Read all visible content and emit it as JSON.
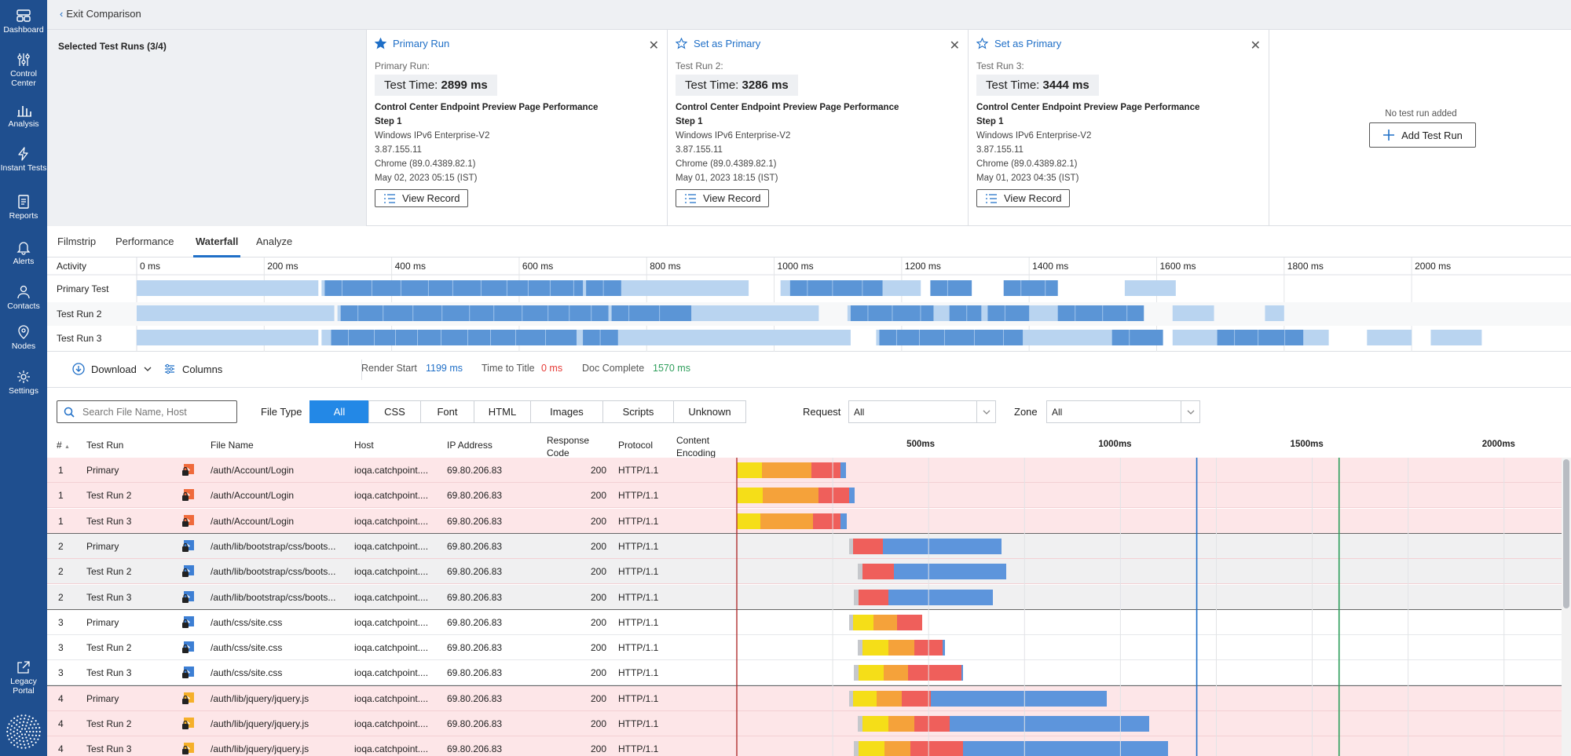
{
  "sidebar": {
    "items": [
      {
        "label": "Dashboard",
        "icon": "dashboard-icon"
      },
      {
        "label": "Control Center",
        "icon": "sliders-icon"
      },
      {
        "label": "Analysis",
        "icon": "bar-chart-icon"
      },
      {
        "label": "Instant Tests",
        "icon": "lightning-icon"
      },
      {
        "label": "Reports",
        "icon": "report-icon"
      },
      {
        "label": "Alerts",
        "icon": "bell-icon"
      },
      {
        "label": "Contacts",
        "icon": "person-icon"
      },
      {
        "label": "Nodes",
        "icon": "location-pin-icon"
      },
      {
        "label": "Settings",
        "icon": "gear-icon"
      }
    ],
    "legacy": "Legacy Portal"
  },
  "topbar": {
    "exit_label": "Exit Comparison"
  },
  "compare": {
    "selected_label": "Selected Test Runs (3/4)",
    "cards": [
      {
        "action": "Primary Run",
        "star": "filled",
        "sub": "Primary Run:",
        "time_label": "Test Time:",
        "time_value": "2899 ms",
        "title": "Control Center Endpoint Preview Page Performance",
        "step": "Step 1",
        "node": "Windows IPv6 Enterprise-V2",
        "ip": "3.87.155.11",
        "browser": "Chrome (89.0.4389.82.1)",
        "date": "May 02, 2023 05:15 (IST)",
        "view": "View Record"
      },
      {
        "action": "Set as Primary",
        "star": "outline",
        "sub": "Test Run 2:",
        "time_label": "Test Time:",
        "time_value": "3286 ms",
        "title": "Control Center Endpoint Preview Page Performance",
        "step": "Step 1",
        "node": "Windows IPv6 Enterprise-V2",
        "ip": "3.87.155.11",
        "browser": "Chrome (89.0.4389.82.1)",
        "date": "May 01, 2023 18:15 (IST)",
        "view": "View Record"
      },
      {
        "action": "Set as Primary",
        "star": "outline",
        "sub": "Test Run 3:",
        "time_label": "Test Time:",
        "time_value": "3444 ms",
        "title": "Control Center Endpoint Preview Page Performance",
        "step": "Step 1",
        "node": "Windows IPv6 Enterprise-V2",
        "ip": "3.87.155.11",
        "browser": "Chrome (89.0.4389.82.1)",
        "date": "May 01, 2023 04:35 (IST)",
        "view": "View Record"
      }
    ],
    "empty_text": "No test run added",
    "add_label": "Add Test Run"
  },
  "tabs": [
    "Filmstrip",
    "Performance",
    "Waterfall",
    "Analyze"
  ],
  "active_tab": "Waterfall",
  "activity": {
    "header": "Activity",
    "ticks": [
      "0 ms",
      "200 ms",
      "400 ms",
      "600 ms",
      "800 ms",
      "1000 ms",
      "1200 ms",
      "1400 ms",
      "1600 ms",
      "1800 ms",
      "2000 ms"
    ],
    "rows": [
      {
        "label": "Primary Test",
        "light": [
          [
            0,
            285
          ],
          [
            290,
            960
          ],
          [
            1010,
            1230
          ],
          [
            1550,
            1630
          ]
        ],
        "dark": [
          [
            295,
            700
          ],
          [
            705,
            760
          ],
          [
            1025,
            1170
          ],
          [
            1245,
            1310
          ],
          [
            1360,
            1445
          ]
        ]
      },
      {
        "label": "Test Run 2",
        "light": [
          [
            0,
            310
          ],
          [
            315,
            1070
          ],
          [
            1115,
            1530
          ],
          [
            1625,
            1690
          ],
          [
            1770,
            1800
          ]
        ],
        "dark": [
          [
            320,
            740
          ],
          [
            745,
            870
          ],
          [
            1120,
            1250
          ],
          [
            1275,
            1325
          ],
          [
            1335,
            1400
          ],
          [
            1445,
            1580
          ]
        ]
      },
      {
        "label": "Test Run 3",
        "light": [
          [
            0,
            285
          ],
          [
            290,
            1120
          ],
          [
            1160,
            1590
          ],
          [
            1625,
            1870
          ],
          [
            1930,
            2000
          ],
          [
            2030,
            2110
          ]
        ],
        "dark": [
          [
            305,
            690
          ],
          [
            700,
            755
          ],
          [
            1165,
            1390
          ],
          [
            1530,
            1610
          ],
          [
            1695,
            1830
          ]
        ]
      }
    ]
  },
  "toolbar": {
    "download": "Download",
    "columns": "Columns",
    "render_start_label": "Render Start",
    "render_start_value": "1199 ms",
    "ttt_label": "Time to Title",
    "ttt_value": "0 ms",
    "doc_complete_label": "Doc Complete",
    "doc_complete_value": "1570 ms",
    "colors": {
      "render": "#1f6fc7",
      "title": "#e53935",
      "doc": "#2e9e5b"
    }
  },
  "filters": {
    "search_placeholder": "Search File Name, Host",
    "file_type_label": "File Type",
    "types": [
      "All",
      "CSS",
      "Font",
      "HTML",
      "Images",
      "Scripts",
      "Unknown"
    ],
    "active_type": "All",
    "request_label": "Request",
    "request_value": "All",
    "zone_label": "Zone",
    "zone_value": "All"
  },
  "table": {
    "headers": {
      "num": "#",
      "run": "Test Run",
      "file": "File Name",
      "host": "Host",
      "ip": "IP Address",
      "code1": "Response",
      "code2": "Code",
      "proto": "Protocol",
      "enc1": "Content",
      "enc2": "Encoding"
    },
    "timeline_ticks": [
      "500ms",
      "1000ms",
      "1500ms",
      "2000ms"
    ],
    "markers_ms": {
      "render_start": 1199,
      "doc_complete": 1570
    },
    "rows": [
      {
        "num": "1",
        "run": "Primary",
        "icon": "html-lock",
        "file": "/auth/Account/Login",
        "host": "ioqa.catchpoint....",
        "ip": "69.80.206.83",
        "code": "200",
        "proto": "HTTP/1.1",
        "group": 1,
        "segs": [
          [
            "#f5de18",
            0,
            65
          ],
          [
            "#f5a23a",
            65,
            195
          ],
          [
            "#ef5f5b",
            195,
            270
          ],
          [
            "#5d95dc",
            270,
            285
          ]
        ]
      },
      {
        "num": "1",
        "run": "Test Run 2",
        "icon": "html-lock",
        "file": "/auth/Account/Login",
        "host": "ioqa.catchpoint....",
        "ip": "69.80.206.83",
        "code": "200",
        "proto": "HTTP/1.1",
        "group": 1,
        "segs": [
          [
            "#f5de18",
            0,
            67
          ],
          [
            "#f5a23a",
            67,
            213
          ],
          [
            "#ef5f5b",
            213,
            293
          ],
          [
            "#5d95dc",
            293,
            308
          ]
        ]
      },
      {
        "num": "1",
        "run": "Test Run 3",
        "icon": "html-lock",
        "file": "/auth/Account/Login",
        "host": "ioqa.catchpoint....",
        "ip": "69.80.206.83",
        "code": "200",
        "proto": "HTTP/1.1",
        "group": 1,
        "segs": [
          [
            "#f5de18",
            0,
            62
          ],
          [
            "#f5a23a",
            62,
            198
          ],
          [
            "#ef5f5b",
            198,
            271
          ],
          [
            "#5d95dc",
            271,
            287
          ]
        ]
      },
      {
        "num": "2",
        "run": "Primary",
        "icon": "css-lock",
        "file": "/auth/lib/bootstrap/css/boots...",
        "host": "ioqa.catchpoint....",
        "ip": "69.80.206.83",
        "code": "200",
        "proto": "HTTP/1.1",
        "group": 2,
        "segs": [
          [
            "#c6c8cc",
            293,
            303
          ],
          [
            "#ef5f5b",
            303,
            380
          ],
          [
            "#5d95dc",
            380,
            690
          ]
        ]
      },
      {
        "num": "2",
        "run": "Test Run 2",
        "icon": "css-lock",
        "file": "/auth/lib/bootstrap/css/boots...",
        "host": "ioqa.catchpoint....",
        "ip": "69.80.206.83",
        "code": "200",
        "proto": "HTTP/1.1",
        "group": 2,
        "segs": [
          [
            "#c6c8cc",
            315,
            327
          ],
          [
            "#ef5f5b",
            327,
            410
          ],
          [
            "#5d95dc",
            410,
            703
          ]
        ]
      },
      {
        "num": "2",
        "run": "Test Run 3",
        "icon": "css-lock",
        "file": "/auth/lib/bootstrap/css/boots...",
        "host": "ioqa.catchpoint....",
        "ip": "69.80.206.83",
        "code": "200",
        "proto": "HTTP/1.1",
        "group": 2,
        "segs": [
          [
            "#c6c8cc",
            305,
            317
          ],
          [
            "#ef5f5b",
            317,
            395
          ],
          [
            "#5d95dc",
            395,
            668
          ]
        ]
      },
      {
        "num": "3",
        "run": "Primary",
        "icon": "css-lock",
        "file": "/auth/css/site.css",
        "host": "ioqa.catchpoint....",
        "ip": "69.80.206.83",
        "code": "200",
        "proto": "HTTP/1.1",
        "group": 3,
        "segs": [
          [
            "#c6c8cc",
            293,
            303
          ],
          [
            "#f5de18",
            303,
            357
          ],
          [
            "#f5a23a",
            357,
            417
          ],
          [
            "#ef5f5b",
            417,
            483
          ]
        ]
      },
      {
        "num": "3",
        "run": "Test Run 2",
        "icon": "css-lock",
        "file": "/auth/css/site.css",
        "host": "ioqa.catchpoint....",
        "ip": "69.80.206.83",
        "code": "200",
        "proto": "HTTP/1.1",
        "group": 3,
        "segs": [
          [
            "#c6c8cc",
            315,
            327
          ],
          [
            "#f5de18",
            327,
            395
          ],
          [
            "#f5a23a",
            395,
            463
          ],
          [
            "#ef5f5b",
            463,
            537
          ],
          [
            "#5d95dc",
            537,
            542
          ]
        ]
      },
      {
        "num": "3",
        "run": "Test Run 3",
        "icon": "css-lock",
        "file": "/auth/css/site.css",
        "host": "ioqa.catchpoint....",
        "ip": "69.80.206.83",
        "code": "200",
        "proto": "HTTP/1.1",
        "group": 3,
        "segs": [
          [
            "#c6c8cc",
            305,
            317
          ],
          [
            "#f5de18",
            317,
            382
          ],
          [
            "#f5a23a",
            382,
            447
          ],
          [
            "#ef5f5b",
            447,
            585
          ],
          [
            "#5d95dc",
            585,
            590
          ]
        ]
      },
      {
        "num": "4",
        "run": "Primary",
        "icon": "js-lock",
        "file": "/auth/lib/jquery/jquery.js",
        "host": "ioqa.catchpoint....",
        "ip": "69.80.206.83",
        "code": "200",
        "proto": "HTTP/1.1",
        "group": 4,
        "segs": [
          [
            "#c6c8cc",
            293,
            303
          ],
          [
            "#f5de18",
            303,
            365
          ],
          [
            "#f5a23a",
            365,
            430
          ],
          [
            "#ef5f5b",
            430,
            505
          ],
          [
            "#5d95dc",
            505,
            965
          ]
        ]
      },
      {
        "num": "4",
        "run": "Test Run 2",
        "icon": "js-lock",
        "file": "/auth/lib/jquery/jquery.js",
        "host": "ioqa.catchpoint....",
        "ip": "69.80.206.83",
        "code": "200",
        "proto": "HTTP/1.1",
        "group": 4,
        "segs": [
          [
            "#c6c8cc",
            315,
            327
          ],
          [
            "#f5de18",
            327,
            395
          ],
          [
            "#f5a23a",
            395,
            463
          ],
          [
            "#ef5f5b",
            463,
            555
          ],
          [
            "#5d95dc",
            555,
            1075
          ]
        ]
      },
      {
        "num": "4",
        "run": "Test Run 3",
        "icon": "js-lock",
        "file": "/auth/lib/jquery/jquery.js",
        "host": "ioqa.catchpoint....",
        "ip": "69.80.206.83",
        "code": "200",
        "proto": "HTTP/1.1",
        "group": 4,
        "segs": [
          [
            "#c6c8cc",
            305,
            317
          ],
          [
            "#f5de18",
            317,
            385
          ],
          [
            "#f5a23a",
            385,
            452
          ],
          [
            "#ef5f5b",
            452,
            590
          ],
          [
            "#5d95dc",
            590,
            1125
          ]
        ]
      }
    ]
  }
}
